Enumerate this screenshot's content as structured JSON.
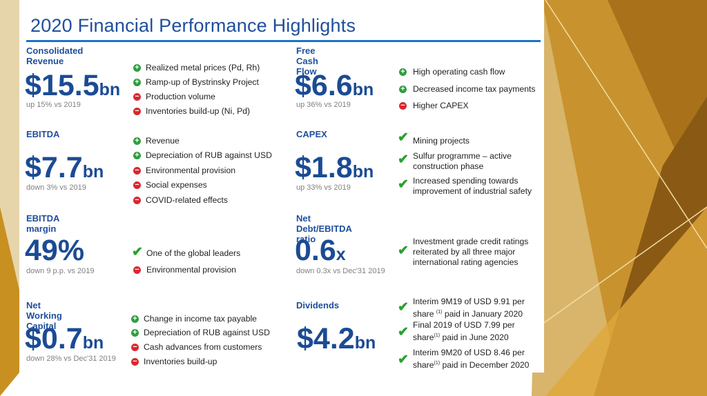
{
  "title": "2020 Financial Performance Highlights",
  "colors": {
    "title": "#1f4e9c",
    "accent_rule": "#1a73c8",
    "plus": "#2e9e3e",
    "minus": "#d9282f",
    "check": "#2aa02e"
  },
  "revenue": {
    "heading": "Consolidated Revenue",
    "value": "$15.5",
    "unit": "bn",
    "change": "up 15% vs 2019",
    "items": [
      {
        "icon": "plus",
        "text": "Realized metal prices (Pd, Rh)"
      },
      {
        "icon": "plus",
        "text": "Ramp-up of Bystrinsky Project"
      },
      {
        "icon": "minus",
        "text": "Production volume"
      },
      {
        "icon": "minus",
        "text": "Inventories build-up (Ni, Pd)"
      }
    ]
  },
  "ebitda": {
    "heading": "EBITDA",
    "value": "$7.7",
    "unit": "bn",
    "change": "down 3% vs 2019",
    "items": [
      {
        "icon": "plus",
        "text": "Revenue"
      },
      {
        "icon": "plus",
        "text": "Depreciation of RUB against USD"
      },
      {
        "icon": "minus",
        "text": "Environmental provision"
      },
      {
        "icon": "minus",
        "text": "Social expenses"
      },
      {
        "icon": "minus",
        "text": "COVID-related effects"
      }
    ]
  },
  "margin": {
    "heading": "EBITDA margin",
    "value": "49%",
    "change": "down 9 p.p. vs 2019",
    "items": [
      {
        "icon": "check",
        "text": "One of the global leaders"
      },
      {
        "icon": "minus",
        "text": "Environmental provision"
      }
    ]
  },
  "nwc": {
    "heading": "Net Working Capital",
    "value": "$0.7",
    "unit": "bn",
    "change": "down 28% vs Dec'31 2019",
    "items": [
      {
        "icon": "plus",
        "text": "Change in income tax payable"
      },
      {
        "icon": "plus",
        "text": "Depreciation of RUB against USD"
      },
      {
        "icon": "minus",
        "text": "Cash advances from customers"
      },
      {
        "icon": "minus",
        "text": "Inventories build-up"
      }
    ]
  },
  "fcf": {
    "heading": "Free Cash Flow",
    "value": "$6.6",
    "unit": "bn",
    "change": "up 36% vs 2019",
    "items": [
      {
        "icon": "plus",
        "text": "High operating cash flow"
      },
      {
        "icon": "plus",
        "text": "Decreased income tax payments"
      },
      {
        "icon": "minus",
        "text": "Higher CAPEX"
      }
    ]
  },
  "capex": {
    "heading": "CAPEX",
    "value": "$1.8",
    "unit": "bn",
    "change": "up 33% vs 2019",
    "items": [
      {
        "icon": "check",
        "text": "Mining projects"
      },
      {
        "icon": "check",
        "text": "Sulfur programme – active construction phase"
      },
      {
        "icon": "check",
        "text": "Increased spending towards improvement of industrial safety"
      }
    ]
  },
  "netdebt": {
    "heading": "Net Debt/EBITDA ratio",
    "value": "0.6",
    "unit": "x",
    "change": "down 0.3x vs Dec'31 2019",
    "items": [
      {
        "icon": "check",
        "text": "Investment grade credit ratings reiterated by all three major international rating agencies"
      }
    ]
  },
  "dividends": {
    "heading": "Dividends",
    "value": "$4.2",
    "unit": "bn",
    "items": [
      {
        "icon": "check",
        "pre": "Interim 9M19 of USD 9.91 per share",
        "sup": "(1)",
        "post": " paid in January 2020"
      },
      {
        "icon": "check",
        "pre": "Final 2019 of USD 7.99 per share",
        "sup": "(1)",
        "post": " paid in June 2020"
      },
      {
        "icon": "check",
        "pre": "Interim 9M20 of USD 8.46 per share",
        "sup": "(1)",
        "post": " paid in December 2020"
      }
    ]
  }
}
